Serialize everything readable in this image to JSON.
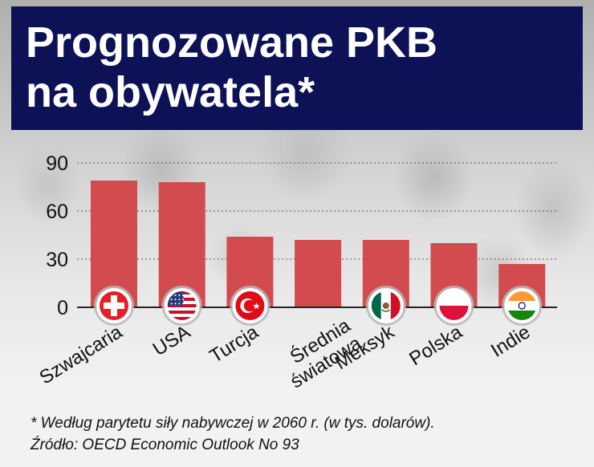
{
  "title": "Prognozowane PKB\nna obywatela*",
  "footnote": "* Według parytetu siły nabywczej w 2060 r. (w tys. dolarów).",
  "source": "Źródło: OECD Economic Outlook No 93",
  "colors": {
    "title_bg": "#0d1156",
    "bar": "#d14b4f",
    "axis": "#222222"
  },
  "chart_data": {
    "type": "bar",
    "title": "Prognozowane PKB na obywatela*",
    "xlabel": "",
    "ylabel": "",
    "ylim": [
      0,
      90
    ],
    "yticks": [
      0,
      30,
      60,
      90
    ],
    "grid": true,
    "categories": [
      "Szwajcaria",
      "USA",
      "Turcja",
      "Średnia światowa",
      "Meksyk",
      "Polska",
      "Indie"
    ],
    "category_lines": [
      [
        "Szwajcaria"
      ],
      [
        "USA"
      ],
      [
        "Turcja"
      ],
      [
        "Średnia",
        "światowa"
      ],
      [
        "Meksyk"
      ],
      [
        "Polska"
      ],
      [
        "Indie"
      ]
    ],
    "values": [
      79,
      78,
      44,
      42,
      42,
      40,
      27
    ],
    "flags": [
      "switzerland-flag",
      "usa-flag",
      "turkey-flag",
      "",
      "mexico-flag",
      "poland-flag",
      "india-flag"
    ]
  }
}
